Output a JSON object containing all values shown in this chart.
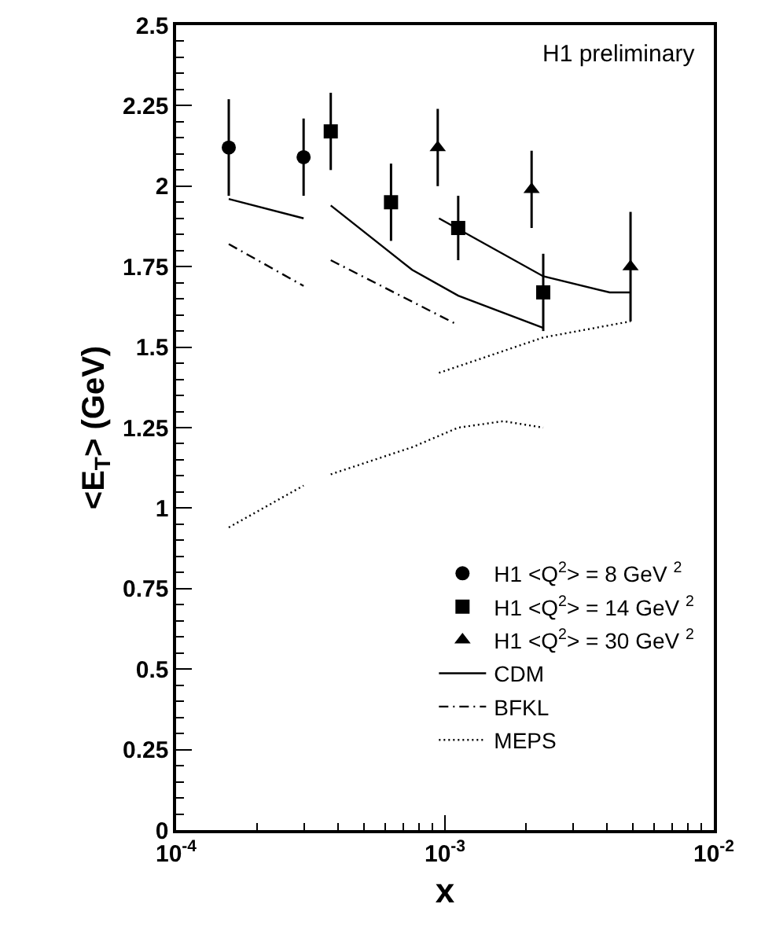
{
  "chart_data": {
    "type": "scatter",
    "xlabel": "x",
    "ylabel": "<E$_{T}$> (GeV)",
    "log": "x",
    "xlim": [
      0.0001,
      0.01
    ],
    "xticks": [
      {
        "value": 0.0001,
        "label": "10$^{-4}$"
      },
      {
        "value": 0.001,
        "label": "10$^{-3}$"
      },
      {
        "value": 0.01,
        "label": "10$^{-2}$"
      }
    ],
    "ylim": [
      0,
      2.5
    ],
    "yticks": [
      0,
      0.25,
      0.5,
      0.75,
      1,
      1.25,
      1.5,
      1.75,
      2,
      2.25,
      2.5
    ],
    "grid": false,
    "legend": "bottom right",
    "annotations": [
      "H1 preliminary"
    ],
    "series": [
      {
        "name": "H1 <Q$^{2}$> = 8 GeV $^{2}$",
        "marker": "circle",
        "color": "#000000",
        "x": [
          0.000157,
          0.000298
        ],
        "values": [
          2.12,
          2.09
        ],
        "errors": [
          0.15,
          0.12
        ]
      },
      {
        "name": "H1 <Q$^{2}$> = 14 GeV $^{2}$",
        "marker": "square",
        "color": "#000000",
        "x": [
          0.000376,
          0.00063,
          0.00112,
          0.00232
        ],
        "values": [
          2.17,
          1.95,
          1.87,
          1.67
        ],
        "errors": [
          0.12,
          0.12,
          0.1,
          0.12
        ]
      },
      {
        "name": "H1 <Q$^{2}$> = 30 GeV $^{2}$",
        "marker": "triangle",
        "color": "#000000",
        "x": [
          0.00094,
          0.0021,
          0.0049
        ],
        "values": [
          2.12,
          1.99,
          1.75
        ],
        "errors": [
          0.12,
          0.12,
          0.17
        ]
      },
      {
        "name": "CDM",
        "type": "line",
        "line_style": "solid",
        "color": "#000000",
        "x": [
          0.000157,
          0.000298,
          null,
          0.000376,
          0.000755,
          0.00112,
          0.00232,
          null,
          0.00095,
          0.00232,
          0.0041,
          0.0049
        ],
        "values": [
          1.96,
          1.9,
          null,
          1.94,
          1.74,
          1.66,
          1.56,
          null,
          1.9,
          1.72,
          1.67,
          1.67
        ]
      },
      {
        "name": "BFKL",
        "type": "line",
        "line_style": "dashed",
        "color": "#000000",
        "x": [
          0.000157,
          0.000298,
          null,
          0.000376,
          0.00111
        ],
        "values": [
          1.82,
          1.69,
          null,
          1.77,
          1.57
        ]
      },
      {
        "name": "MEPS",
        "type": "line",
        "line_style": "dotted",
        "color": "#000000",
        "x": [
          0.00095,
          0.00232,
          0.0049,
          null,
          0.000157,
          0.000298,
          null,
          0.000376,
          0.00076,
          0.00112,
          0.00165,
          0.00232
        ],
        "values": [
          1.42,
          1.53,
          1.58,
          null,
          0.94,
          1.07,
          null,
          1.105,
          1.19,
          1.25,
          1.27,
          1.25
        ]
      }
    ]
  }
}
